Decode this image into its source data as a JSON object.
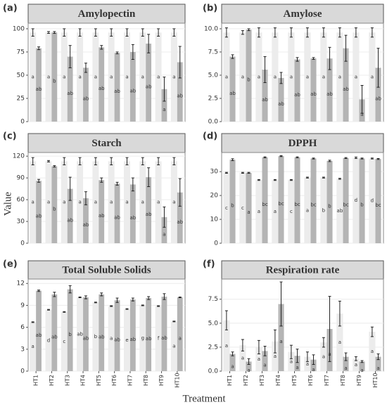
{
  "y_label": "Value",
  "x_label": "Treatment",
  "chart_data": [
    {
      "type": "bar",
      "tag": "(a)",
      "title": "Amylopectin",
      "ylim": [
        0,
        106
      ],
      "yticks": [
        0,
        25,
        50,
        75,
        100
      ],
      "grid": true,
      "series": [
        {
          "color": "#ececec",
          "values": [
            96,
            96,
            96,
            96,
            96,
            96,
            96,
            96,
            96,
            96
          ],
          "errors": [
            4,
            1,
            4,
            4,
            4,
            4,
            4,
            4,
            4,
            4
          ],
          "letters": [
            "a",
            "a",
            "a",
            "a",
            "a",
            "a",
            "a",
            "a",
            "a",
            "a"
          ]
        },
        {
          "color": "#b4b4b4",
          "values": [
            79,
            96,
            70,
            58,
            80,
            74,
            75,
            84,
            35,
            64
          ],
          "errors": [
            1.5,
            1,
            12,
            5,
            2,
            1,
            8,
            10,
            13,
            17
          ],
          "letters": [
            "ab",
            "b",
            "ab",
            "ab",
            "ab",
            "ab",
            "ab",
            "ab",
            "a",
            "ab"
          ]
        }
      ]
    },
    {
      "type": "bar",
      "tag": "(b)",
      "title": "Amylose",
      "ylim": [
        0,
        10.6
      ],
      "yticks": [
        {
          "value": 0,
          "label": "0.0"
        },
        2.5,
        {
          "value": 5,
          "label": "5.0"
        },
        7.5,
        {
          "value": 10,
          "label": "10.0"
        }
      ],
      "grid": true,
      "series": [
        {
          "color": "#ececec",
          "values": [
            9.6,
            9.6,
            9.6,
            9.6,
            9.6,
            9.6,
            9.6,
            9.6,
            9.6,
            9.6
          ],
          "errors": [
            0.5,
            0.2,
            0.5,
            0.5,
            0.5,
            0.5,
            0.5,
            0.5,
            0.5,
            0.5
          ],
          "letters": [
            "a",
            "a",
            "a",
            "a",
            "a",
            "a",
            "a",
            "a",
            "a",
            "a"
          ]
        },
        {
          "color": "#b4b4b4",
          "values": [
            7,
            9.9,
            5.6,
            4.7,
            6.7,
            6.8,
            6.8,
            7.9,
            2.4,
            5.8
          ],
          "errors": [
            0.2,
            0.1,
            1.4,
            0.6,
            0.2,
            0.1,
            1.2,
            1.4,
            1.5,
            2.1
          ],
          "letters": [
            "ab",
            "b",
            "ab",
            "ab",
            "ab",
            "ab",
            "ab",
            "ab",
            "a",
            "ab"
          ]
        }
      ]
    },
    {
      "type": "bar",
      "tag": "(c)",
      "title": "Starch",
      "ylim": [
        0,
        125
      ],
      "yticks": [
        0,
        30,
        60,
        90,
        120
      ],
      "grid": true,
      "series": [
        {
          "color": "#ececec",
          "values": [
            113,
            113,
            113,
            113,
            113,
            113,
            113,
            113,
            113,
            113
          ],
          "errors": [
            5,
            1,
            5,
            5,
            5,
            5,
            5,
            5,
            5,
            5
          ],
          "letters": [
            "a",
            "a",
            "a",
            "a",
            "a",
            "a",
            "a",
            "a",
            "a",
            "a"
          ]
        },
        {
          "color": "#b4b4b4",
          "values": [
            86,
            106,
            75,
            62,
            87,
            82,
            81,
            91,
            36,
            70
          ],
          "errors": [
            2,
            1,
            16,
            9,
            3,
            2,
            9,
            13,
            14,
            19
          ],
          "letters": [
            "ab",
            "b",
            "ab",
            "ab",
            "ab",
            "ab",
            "ab",
            "ab",
            "a",
            "ab"
          ]
        }
      ]
    },
    {
      "type": "bar",
      "tag": "(d)",
      "title": "DPPH",
      "ylim": [
        0,
        38
      ],
      "yticks": [
        0,
        10,
        20,
        30
      ],
      "grid": true,
      "series": [
        {
          "color": "#ececec",
          "values": [
            29.5,
            29.5,
            26.5,
            26.5,
            26.5,
            27.5,
            27.5,
            27,
            35.8,
            35.5
          ],
          "errors": [
            0.2,
            0.2,
            0.2,
            0.2,
            0.2,
            0.2,
            0.2,
            0.2,
            0.3,
            0.2
          ],
          "letters": [
            "c",
            "c",
            "a",
            "a",
            "c",
            "a",
            "b",
            "ab",
            "d",
            "d"
          ]
        },
        {
          "color": "#b4b4b4",
          "values": [
            35,
            29.5,
            36,
            36.5,
            36,
            35.5,
            34.5,
            35.7,
            35.5,
            35.3
          ],
          "errors": [
            0.4,
            0.2,
            0.2,
            0.2,
            0.2,
            0.2,
            0.3,
            0.2,
            0.2,
            0.2
          ],
          "letters": [
            "b",
            "a",
            "bc",
            "bc",
            "bc",
            "bc",
            "b",
            "bc",
            "b",
            "bc"
          ]
        }
      ]
    },
    {
      "type": "bar",
      "tag": "(e)",
      "title": "Total Soluble Solids",
      "ylim": [
        0,
        12.6
      ],
      "yticks": [
        0,
        3,
        6,
        9,
        12
      ],
      "grid": true,
      "categories": [
        "HT1",
        "HT2",
        "HT3",
        "HT4",
        "HT5",
        "HT6",
        "HT7",
        "HT8",
        "HT9",
        "HT10"
      ],
      "series": [
        {
          "color": "#ececec",
          "values": [
            6.7,
            8.4,
            8.1,
            10.1,
            9.4,
            8.9,
            8.5,
            9,
            8.9,
            6.8
          ],
          "errors": [
            0.05,
            0.05,
            0.05,
            0.05,
            0.05,
            0.05,
            0.05,
            0.05,
            0.05,
            0.05
          ],
          "letters": [
            "a",
            "d",
            "c",
            "ab",
            "b",
            "a",
            "e",
            "g",
            "f",
            "a"
          ]
        },
        {
          "color": "#b4b4b4",
          "values": [
            11,
            10.5,
            11.2,
            10.1,
            10.5,
            9.7,
            9.8,
            10,
            10.2,
            10.1
          ],
          "errors": [
            0.1,
            0.3,
            0.5,
            0.2,
            0.2,
            0.3,
            0.2,
            0.2,
            0.4,
            0.05
          ],
          "letters": [
            "ab",
            "ab",
            "b",
            "ab",
            "ab",
            "ab",
            "ab",
            "ab",
            "ab",
            "a"
          ]
        }
      ]
    },
    {
      "type": "bar",
      "tag": "(f)",
      "title": "Respiration rate",
      "ylim": [
        0,
        9.6
      ],
      "yticks": [
        {
          "value": 0,
          "label": "0.0"
        },
        2.5,
        {
          "value": 5,
          "label": "5.0"
        },
        7.5
      ],
      "grid": true,
      "categories": [
        "HT1",
        "HT2",
        "HT3",
        "HT4",
        "HT5",
        "HT6",
        "HT7",
        "HT8",
        "HT9",
        "HT10"
      ],
      "series": [
        {
          "color": "#ececec",
          "values": [
            5.3,
            2.7,
            2.5,
            3.1,
            2,
            1.5,
            3,
            6,
            1.3,
            4.1
          ],
          "errors": [
            1,
            0.6,
            0.7,
            1.2,
            0.7,
            0.5,
            0.5,
            1.3,
            0.2,
            0.5
          ],
          "letters": [
            "a",
            "a",
            "a",
            "a",
            "a",
            "a",
            "a",
            "a",
            "a",
            "a"
          ]
        },
        {
          "color": "#b4b4b4",
          "values": [
            1.8,
            1,
            2.1,
            7,
            1.6,
            1.2,
            4.4,
            1.5,
            1,
            1.5
          ],
          "errors": [
            0.2,
            0.3,
            0.5,
            2.3,
            0.7,
            0.5,
            3.4,
            0.4,
            0.1,
            0.3
          ],
          "letters": [
            "a",
            "a",
            "a",
            "a",
            "a",
            "a",
            "a",
            "a",
            "a",
            "a"
          ]
        }
      ]
    }
  ]
}
